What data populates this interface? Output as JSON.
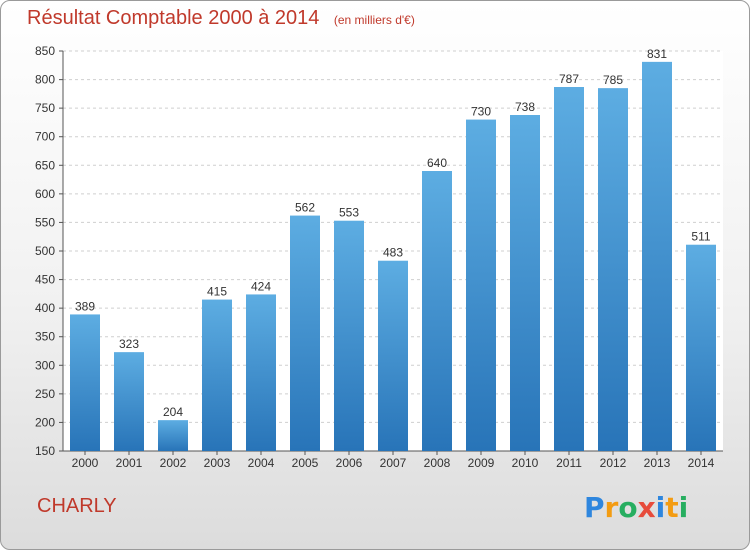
{
  "title": "Résultat Comptable 2000 à 2014",
  "unit": "(en milliers d'€)",
  "commune": "CHARLY",
  "logo": {
    "letters": [
      "P",
      "r",
      "o",
      "x",
      "i",
      "t",
      "i"
    ],
    "colors": [
      "#2e86de",
      "#f39c12",
      "#27ae60",
      "#e74c3c",
      "#2e86de",
      "#f39c12",
      "#27ae60"
    ]
  },
  "colors": {
    "accent": "#c0392b",
    "bar_top": "#5dade2",
    "bar_bottom": "#2874b8"
  },
  "chart_data": {
    "type": "bar",
    "categories": [
      "2000",
      "2001",
      "2002",
      "2003",
      "2004",
      "2005",
      "2006",
      "2007",
      "2008",
      "2009",
      "2010",
      "2011",
      "2012",
      "2013",
      "2014"
    ],
    "values": [
      389,
      323,
      204,
      415,
      424,
      562,
      553,
      483,
      640,
      730,
      738,
      787,
      785,
      831,
      511
    ],
    "ylim": [
      150,
      850
    ],
    "yticks": [
      150,
      200,
      250,
      300,
      350,
      400,
      450,
      500,
      550,
      600,
      650,
      700,
      750,
      800,
      850
    ],
    "grid": true,
    "title": "Résultat Comptable 2000 à 2014",
    "xlabel": "",
    "ylabel": ""
  }
}
